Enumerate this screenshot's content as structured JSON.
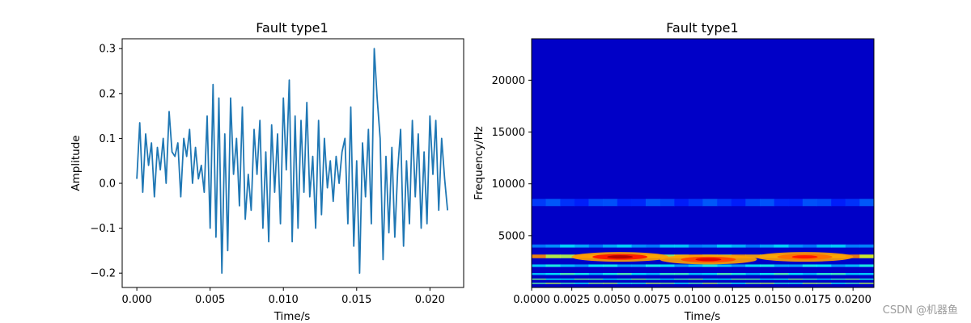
{
  "watermark": "CSDN @机器鱼",
  "colors": {
    "line": "#1f77b4",
    "axes": "#000000",
    "colormap": [
      "#000080",
      "#0000ff",
      "#00a0ff",
      "#00ffff",
      "#ffff00",
      "#ff8000",
      "#ff0000",
      "#800000"
    ]
  },
  "chart_data": [
    {
      "type": "line",
      "title": "Fault type1",
      "xlabel": "Time/s",
      "ylabel": "Amplitude",
      "xlim": [
        -0.001,
        0.0223
      ],
      "ylim": [
        -0.232,
        0.322
      ],
      "xticks": [
        0.0,
        0.005,
        0.01,
        0.015,
        0.02
      ],
      "xtick_labels": [
        "0.000",
        "0.005",
        "0.010",
        "0.015",
        "0.020"
      ],
      "yticks": [
        -0.2,
        -0.1,
        0.0,
        0.1,
        0.2,
        0.3
      ],
      "ytick_labels": [
        "−0.2",
        "−0.1",
        "0.0",
        "0.1",
        "0.2",
        "0.3"
      ],
      "series": [
        {
          "x": [
            0.0,
            0.0002,
            0.0004,
            0.0006,
            0.0008,
            0.001,
            0.0012,
            0.0014,
            0.0016,
            0.0018,
            0.002,
            0.0022,
            0.0024,
            0.0026,
            0.0028,
            0.003,
            0.0032,
            0.0034,
            0.0036,
            0.0038,
            0.004,
            0.0042,
            0.0044,
            0.0046,
            0.0048,
            0.005,
            0.0052,
            0.0054,
            0.0056,
            0.0058,
            0.006,
            0.0062,
            0.0064,
            0.0066,
            0.0068,
            0.007,
            0.0072,
            0.0074,
            0.0076,
            0.0078,
            0.008,
            0.0082,
            0.0084,
            0.0086,
            0.0088,
            0.009,
            0.0092,
            0.0094,
            0.0096,
            0.0098,
            0.01,
            0.0102,
            0.0104,
            0.0106,
            0.0108,
            0.011,
            0.0112,
            0.0114,
            0.0116,
            0.0118,
            0.012,
            0.0122,
            0.0124,
            0.0126,
            0.0128,
            0.013,
            0.0132,
            0.0134,
            0.0136,
            0.0138,
            0.014,
            0.0142,
            0.0144,
            0.0146,
            0.0148,
            0.015,
            0.0152,
            0.0154,
            0.0156,
            0.0158,
            0.016,
            0.0162,
            0.0164,
            0.0166,
            0.0168,
            0.017,
            0.0172,
            0.0174,
            0.0176,
            0.0178,
            0.018,
            0.0182,
            0.0184,
            0.0186,
            0.0188,
            0.019,
            0.0192,
            0.0194,
            0.0196,
            0.0198,
            0.02,
            0.0202,
            0.0204,
            0.0206,
            0.0208,
            0.021,
            0.0212
          ],
          "y": [
            0.01,
            0.135,
            -0.02,
            0.11,
            0.04,
            0.09,
            -0.03,
            0.08,
            0.03,
            0.1,
            0.0,
            0.16,
            0.07,
            0.06,
            0.09,
            -0.03,
            0.1,
            0.06,
            0.12,
            0.0,
            0.08,
            0.01,
            0.04,
            -0.02,
            0.15,
            -0.1,
            0.22,
            -0.12,
            0.19,
            -0.2,
            0.11,
            -0.15,
            0.19,
            0.02,
            0.1,
            -0.05,
            0.17,
            -0.08,
            0.02,
            -0.06,
            0.12,
            0.02,
            0.14,
            -0.1,
            0.07,
            -0.13,
            0.13,
            -0.02,
            0.11,
            -0.09,
            0.19,
            0.03,
            0.23,
            -0.13,
            0.15,
            -0.1,
            0.14,
            -0.02,
            0.18,
            -0.03,
            0.06,
            -0.1,
            0.14,
            -0.07,
            0.1,
            -0.01,
            0.05,
            -0.04,
            0.06,
            0.0,
            0.07,
            0.1,
            -0.09,
            0.17,
            -0.14,
            0.05,
            -0.2,
            0.09,
            -0.03,
            0.12,
            -0.09,
            0.3,
            0.19,
            0.1,
            -0.17,
            0.06,
            -0.11,
            0.08,
            -0.12,
            0.03,
            0.12,
            -0.14,
            0.05,
            -0.09,
            0.14,
            -0.03,
            0.11,
            -0.1,
            0.07,
            -0.09,
            0.15,
            0.02,
            0.14,
            -0.06,
            0.1,
            0.01,
            -0.06
          ]
        }
      ]
    },
    {
      "type": "heatmap",
      "title": "Fault type1",
      "xlabel": "Time/s",
      "ylabel": "Frequency/Hz",
      "xlim": [
        0.0,
        0.0213
      ],
      "ylim": [
        0,
        24000
      ],
      "xticks": [
        0.0,
        0.0025,
        0.005,
        0.0075,
        0.01,
        0.0125,
        0.015,
        0.0175,
        0.02
      ],
      "xtick_labels": [
        "0.0000",
        "0.0025",
        "0.0050",
        "0.0075",
        "0.0100",
        "0.0125",
        "0.0150",
        "0.0175",
        "0.0200"
      ],
      "yticks": [
        5000,
        10000,
        15000,
        20000
      ],
      "ytick_labels": [
        "5000",
        "10000",
        "15000",
        "20000"
      ],
      "colormap": "jet",
      "bands": [
        {
          "freq": 400,
          "width": 120,
          "intensity": 0.55
        },
        {
          "freq": 800,
          "width": 120,
          "intensity": 0.5
        },
        {
          "freq": 1300,
          "width": 200,
          "intensity": 0.45
        },
        {
          "freq": 2100,
          "width": 250,
          "intensity": 0.4
        },
        {
          "freq": 3000,
          "width": 350,
          "intensity": 0.75
        },
        {
          "freq": 4000,
          "width": 300,
          "intensity": 0.35
        },
        {
          "freq": 8200,
          "width": 700,
          "intensity": 0.22
        }
      ],
      "hotspots": [
        {
          "time": 0.0055,
          "freq": 2950,
          "intensity": 1.0
        },
        {
          "time": 0.011,
          "freq": 2700,
          "intensity": 0.95
        },
        {
          "time": 0.017,
          "freq": 2950,
          "intensity": 0.9
        }
      ]
    }
  ]
}
